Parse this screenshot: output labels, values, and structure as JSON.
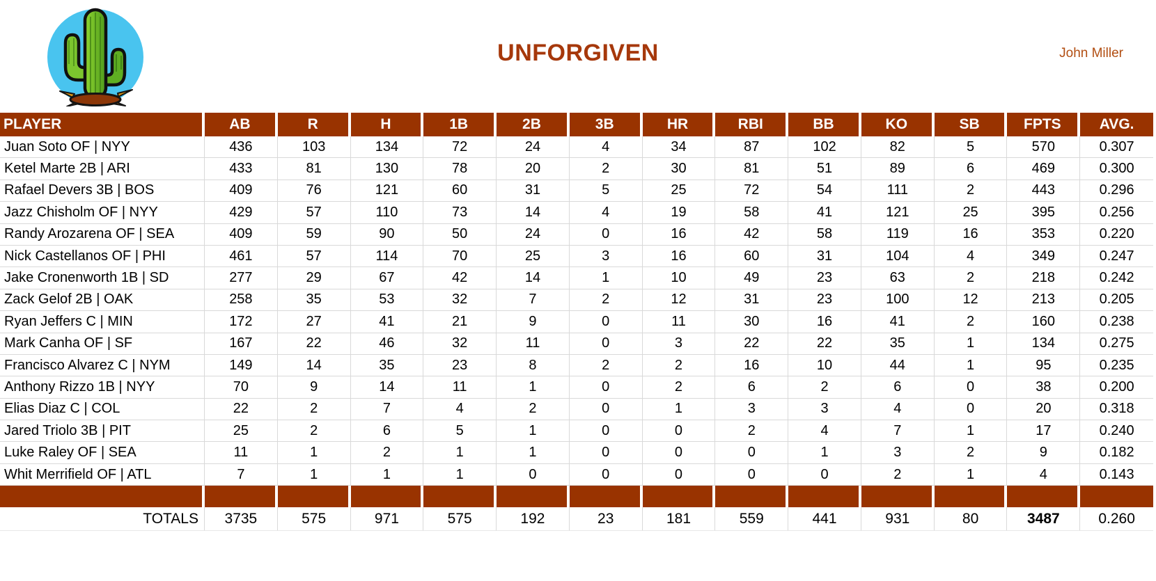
{
  "header": {
    "title": "UNFORGIVEN",
    "owner": "John Miller",
    "logo": "cactus-logo"
  },
  "colors": {
    "header_brown": "#993300",
    "title_color": "#A6380B",
    "owner_color": "#B24E12",
    "gridline": "#D9D9D9",
    "logo_sky_blue": "#49C4EF",
    "cactus_green": "#6CBE2A",
    "dirt_brown": "#8C3708"
  },
  "table": {
    "columns": [
      "PLAYER",
      "AB",
      "R",
      "H",
      "1B",
      "2B",
      "3B",
      "HR",
      "RBI",
      "BB",
      "KO",
      "SB",
      "FPTS",
      "AVG."
    ],
    "rows": [
      {
        "player": "Juan Soto OF | NYY",
        "stats": [
          436,
          103,
          134,
          72,
          24,
          4,
          34,
          87,
          102,
          82,
          5,
          570,
          "0.307"
        ]
      },
      {
        "player": "Ketel Marte 2B | ARI",
        "stats": [
          433,
          81,
          130,
          78,
          20,
          2,
          30,
          81,
          51,
          89,
          6,
          469,
          "0.300"
        ]
      },
      {
        "player": "Rafael Devers 3B | BOS",
        "stats": [
          409,
          76,
          121,
          60,
          31,
          5,
          25,
          72,
          54,
          111,
          2,
          443,
          "0.296"
        ]
      },
      {
        "player": "Jazz Chisholm OF | NYY",
        "stats": [
          429,
          57,
          110,
          73,
          14,
          4,
          19,
          58,
          41,
          121,
          25,
          395,
          "0.256"
        ]
      },
      {
        "player": "Randy Arozarena OF | SEA",
        "stats": [
          409,
          59,
          90,
          50,
          24,
          0,
          16,
          42,
          58,
          119,
          16,
          353,
          "0.220"
        ]
      },
      {
        "player": "Nick Castellanos OF | PHI",
        "stats": [
          461,
          57,
          114,
          70,
          25,
          3,
          16,
          60,
          31,
          104,
          4,
          349,
          "0.247"
        ]
      },
      {
        "player": "Jake Cronenworth 1B | SD",
        "stats": [
          277,
          29,
          67,
          42,
          14,
          1,
          10,
          49,
          23,
          63,
          2,
          218,
          "0.242"
        ]
      },
      {
        "player": "Zack Gelof 2B | OAK",
        "stats": [
          258,
          35,
          53,
          32,
          7,
          2,
          12,
          31,
          23,
          100,
          12,
          213,
          "0.205"
        ]
      },
      {
        "player": "Ryan Jeffers C | MIN",
        "stats": [
          172,
          27,
          41,
          21,
          9,
          0,
          11,
          30,
          16,
          41,
          2,
          160,
          "0.238"
        ]
      },
      {
        "player": "Mark Canha OF | SF",
        "stats": [
          167,
          22,
          46,
          32,
          11,
          0,
          3,
          22,
          22,
          35,
          1,
          134,
          "0.275"
        ]
      },
      {
        "player": "Francisco Alvarez C | NYM",
        "stats": [
          149,
          14,
          35,
          23,
          8,
          2,
          2,
          16,
          10,
          44,
          1,
          95,
          "0.235"
        ]
      },
      {
        "player": "Anthony Rizzo 1B | NYY",
        "stats": [
          70,
          9,
          14,
          11,
          1,
          0,
          2,
          6,
          2,
          6,
          0,
          38,
          "0.200"
        ]
      },
      {
        "player": "Elias Diaz C | COL",
        "stats": [
          22,
          2,
          7,
          4,
          2,
          0,
          1,
          3,
          3,
          4,
          0,
          20,
          "0.318"
        ]
      },
      {
        "player": "Jared Triolo 3B | PIT",
        "stats": [
          25,
          2,
          6,
          5,
          1,
          0,
          0,
          2,
          4,
          7,
          1,
          17,
          "0.240"
        ]
      },
      {
        "player": "Luke Raley OF | SEA",
        "stats": [
          11,
          1,
          2,
          1,
          1,
          0,
          0,
          0,
          1,
          3,
          2,
          9,
          "0.182"
        ]
      },
      {
        "player": "Whit Merrifield OF | ATL",
        "stats": [
          7,
          1,
          1,
          1,
          0,
          0,
          0,
          0,
          0,
          2,
          1,
          4,
          "0.143"
        ]
      }
    ],
    "totals": {
      "label": "TOTALS",
      "stats": [
        3735,
        575,
        971,
        575,
        192,
        23,
        181,
        559,
        441,
        931,
        80,
        3487,
        "0.260"
      ],
      "bold_stat_index": 11
    }
  }
}
